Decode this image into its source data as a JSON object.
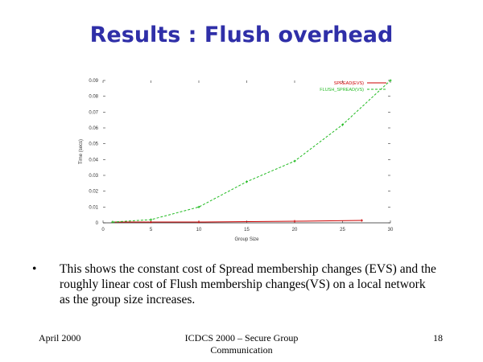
{
  "slide": {
    "title": "Results : Flush overhead",
    "bullet_symbol": "•",
    "bullet": "This shows the constant cost of Spread membership changes (EVS) and the roughly linear cost of Flush membership changes(VS) on a local network as the group size increases.",
    "footer_left": "April 2000",
    "footer_center": "ICDCS 2000 – Secure Group Communication",
    "footer_right": "18"
  },
  "chart_data": {
    "type": "line",
    "ylabel": "Time (secs)",
    "xlabel": "Group Size",
    "xlim": [
      0,
      30
    ],
    "ylim": [
      0,
      0.09
    ],
    "x_ticks": [
      "0",
      "5",
      "10",
      "15",
      "20",
      "25",
      "30"
    ],
    "y_ticks": [
      "0",
      "0.01",
      "0.02",
      "0.03",
      "0.04",
      "0.05",
      "0.06",
      "0.07",
      "0.08",
      "0.09"
    ],
    "legend_position": "top-right",
    "series": [
      {
        "name": "SPREAD(EVS)",
        "color": "#cc0000",
        "x": [
          1,
          5,
          10,
          20,
          27
        ],
        "y": [
          0.0005,
          0.0005,
          0.0005,
          0.001,
          0.0015
        ]
      },
      {
        "name": "FLUSH_SPREAD(VS)",
        "color": "#22bb22",
        "x": [
          1,
          5,
          10,
          15,
          20,
          25,
          30
        ],
        "y": [
          0.0005,
          0.002,
          0.01,
          0.026,
          0.039,
          0.062,
          0.09
        ]
      }
    ]
  }
}
